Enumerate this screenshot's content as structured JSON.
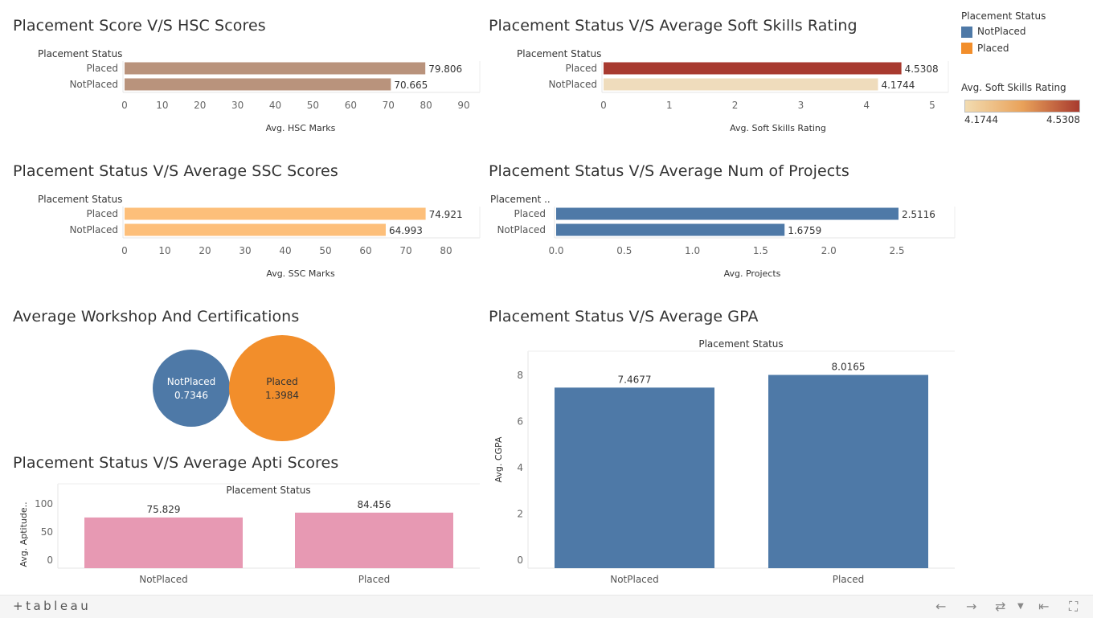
{
  "chart_data": [
    {
      "id": "hsc",
      "type": "bar",
      "orientation": "horizontal",
      "title": "Placement Score V/S HSC Scores",
      "category_header": "Placement Status",
      "categories": [
        "Placed",
        "NotPlaced"
      ],
      "values": [
        79.806,
        70.665
      ],
      "value_labels": [
        "79.806",
        "70.665"
      ],
      "xlabel": "Avg. HSC Marks",
      "xlim": [
        0,
        90
      ],
      "ticks": [
        "0",
        "10",
        "20",
        "30",
        "40",
        "50",
        "60",
        "70",
        "80",
        "90"
      ],
      "colors": [
        "#b9937c",
        "#b9937c"
      ]
    },
    {
      "id": "soft",
      "type": "bar",
      "orientation": "horizontal",
      "title": "Placement Status V/S Average Soft Skills Rating",
      "category_header": "Placement Status",
      "categories": [
        "Placed",
        "NotPlaced"
      ],
      "values": [
        4.5308,
        4.1744
      ],
      "value_labels": [
        "4.5308",
        "4.1744"
      ],
      "xlabel": "Avg. Soft Skills Rating",
      "xlim": [
        0,
        5
      ],
      "ticks": [
        "0",
        "1",
        "2",
        "3",
        "4",
        "5"
      ],
      "colors": [
        "#a83a2f",
        "#efdcbc"
      ]
    },
    {
      "id": "ssc",
      "type": "bar",
      "orientation": "horizontal",
      "title": "Placement Status V/S Average SSC Scores",
      "category_header": "Placement Status",
      "categories": [
        "Placed",
        "NotPlaced"
      ],
      "values": [
        74.921,
        64.993
      ],
      "value_labels": [
        "74.921",
        "64.993"
      ],
      "xlabel": "Avg. SSC Marks",
      "xlim": [
        0,
        80
      ],
      "ticks": [
        "0",
        "10",
        "20",
        "30",
        "40",
        "50",
        "60",
        "70",
        "80"
      ],
      "colors": [
        "#fdbf7a",
        "#fdbf7a"
      ]
    },
    {
      "id": "proj",
      "type": "bar",
      "orientation": "horizontal",
      "title": "Placement Status V/S Average Num of Projects",
      "category_header": "Placement ..",
      "categories": [
        "Placed",
        "NotPlaced"
      ],
      "values": [
        2.5116,
        1.6759
      ],
      "value_labels": [
        "2.5116",
        "1.6759"
      ],
      "xlabel": "Avg. Projects",
      "xlim": [
        0,
        2.5
      ],
      "ticks": [
        "0.0",
        "0.5",
        "1.0",
        "1.5",
        "2.0",
        "2.5"
      ],
      "colors": [
        "#4e79a7",
        "#4e79a7"
      ]
    },
    {
      "id": "workshop",
      "type": "bubble",
      "title": "Average Workshop And Certifications",
      "categories": [
        "NotPlaced",
        "Placed"
      ],
      "values": [
        0.7346,
        1.3984
      ],
      "value_labels": [
        "0.7346",
        "1.3984"
      ],
      "colors": [
        "#4e79a7",
        "#f28e2b"
      ]
    },
    {
      "id": "apti",
      "type": "bar",
      "orientation": "vertical",
      "title": "Placement Status V/S Average Apti Scores",
      "category_header": "Placement Status",
      "categories": [
        "NotPlaced",
        "Placed"
      ],
      "values": [
        75.829,
        84.456
      ],
      "value_labels": [
        "75.829",
        "84.456"
      ],
      "ylabel": "Avg. Aptitude..",
      "ylim": [
        0,
        100
      ],
      "ticks": [
        "0",
        "50",
        "100"
      ],
      "colors": [
        "#e799b3",
        "#e799b3"
      ]
    },
    {
      "id": "gpa",
      "type": "bar",
      "orientation": "vertical",
      "title": "Placement Status V/S Average GPA",
      "category_header": "Placement Status",
      "categories": [
        "NotPlaced",
        "Placed"
      ],
      "values": [
        7.4677,
        8.0165
      ],
      "value_labels": [
        "7.4677",
        "8.0165"
      ],
      "ylabel": "Avg. CGPA",
      "ylim": [
        0,
        8
      ],
      "ticks": [
        "0",
        "2",
        "4",
        "6",
        "8"
      ],
      "colors": [
        "#4e79a7",
        "#4e79a7"
      ]
    }
  ],
  "legend": {
    "title": "Placement Status",
    "items": [
      {
        "label": "NotPlaced",
        "color": "#4e79a7"
      },
      {
        "label": "Placed",
        "color": "#f28e2b"
      }
    ],
    "gradient_title": "Avg. Soft Skills Rating",
    "gradient_min": "4.1744",
    "gradient_max": "4.5308",
    "gradient_colors": [
      "#f2dcb1",
      "#e9a25a",
      "#a83a2f"
    ]
  },
  "footer": {
    "logo": "+tableau",
    "icons": [
      "undo-icon",
      "redo-icon",
      "revert-icon",
      "dropdown-icon",
      "reset-icon",
      "fullscreen-icon"
    ]
  }
}
